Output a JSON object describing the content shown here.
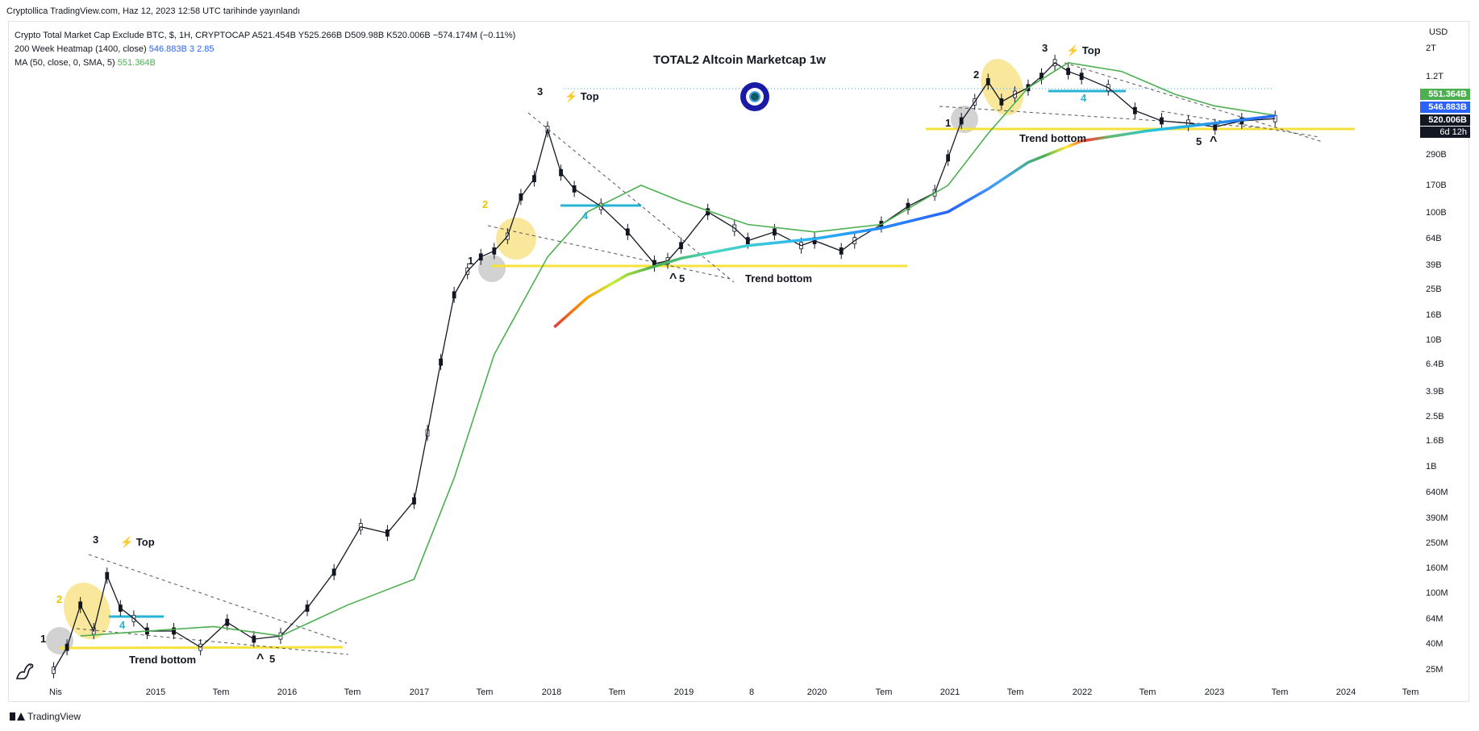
{
  "header": {
    "publish_line": "Cryptollica TradingView.com, Haz 12, 2023 12:58 UTC tarihinde yayınlandı"
  },
  "legend": {
    "main": "Crypto Total Market Cap Exclude BTC, $, 1H, CRYPTOCAP  A521.454B  Y525.266B  D509.98B  K520.006B  −574.174M (−0.11%)",
    "heatmap_label": "200 Week Heatmap (1400, close)",
    "heatmap_value": "546.883B",
    "heatmap_extra": "3  2.85",
    "ma_label": "MA (50, close, 0, SMA, 5)",
    "ma_value": "551.364B"
  },
  "title": "TOTAL2 Altcoin Marketcap 1w",
  "axis": {
    "currency": "USD",
    "y_ticks": [
      "2T",
      "1.2T",
      "290B",
      "170B",
      "100B",
      "64B",
      "39B",
      "25B",
      "16B",
      "10B",
      "6.4B",
      "3.9B",
      "2.5B",
      "1.6B",
      "1B",
      "640M",
      "390M",
      "250M",
      "160M",
      "100M",
      "64M",
      "40M",
      "25M"
    ],
    "x_ticks": [
      "Nis",
      "2015",
      "Tem",
      "2016",
      "Tem",
      "2017",
      "Tem",
      "2018",
      "Tem",
      "2019",
      "8",
      "2020",
      "Tem",
      "2021",
      "Tem",
      "2022",
      "Tem",
      "2023",
      "Tem",
      "2024",
      "Tem"
    ]
  },
  "badges": {
    "ma": "551.364B",
    "heatmap": "546.883B",
    "price": "520.006B",
    "countdown": "6d 12h"
  },
  "annotations": {
    "top": "Top",
    "trend_bottom": "Trend bottom",
    "wave1": "1",
    "wave2": "2",
    "wave3": "3",
    "wave4": "4",
    "wave5": "5"
  },
  "footer": {
    "brand": "TradingView"
  },
  "colors": {
    "ma": "#4caf50",
    "heatmap": "#2962ff",
    "trend_bottom_line": "#f5e23b",
    "wave4_line": "#26b3d6",
    "highlight": "#f7e07a",
    "badge_ma": "#4caf50",
    "badge_heatmap": "#2962ff",
    "badge_price": "#131722"
  },
  "chart_data": {
    "type": "line",
    "title": "TOTAL2 Altcoin Marketcap 1w",
    "yscale": "log",
    "ylim": [
      20000000,
      2400000000000
    ],
    "xlim": [
      2014.2,
      2024.5
    ],
    "series": [
      {
        "name": "Crypto Total Market Cap Exclude BTC",
        "x": [
          2014.3,
          2014.4,
          2014.5,
          2014.6,
          2014.7,
          2014.8,
          2014.9,
          2015.0,
          2015.2,
          2015.4,
          2015.6,
          2015.8,
          2016.0,
          2016.2,
          2016.4,
          2016.6,
          2016.8,
          2017.0,
          2017.1,
          2017.2,
          2017.3,
          2017.4,
          2017.5,
          2017.6,
          2017.7,
          2017.8,
          2017.9,
          2018.0,
          2018.1,
          2018.2,
          2018.4,
          2018.6,
          2018.8,
          2018.9,
          2019.0,
          2019.2,
          2019.4,
          2019.5,
          2019.7,
          2019.9,
          2020.0,
          2020.2,
          2020.3,
          2020.5,
          2020.7,
          2020.9,
          2021.0,
          2021.1,
          2021.2,
          2021.3,
          2021.4,
          2021.5,
          2021.6,
          2021.7,
          2021.8,
          2021.9,
          2022.0,
          2022.2,
          2022.4,
          2022.6,
          2022.8,
          2023.0,
          2023.2,
          2023.45
        ],
        "values": [
          30000000,
          45000000,
          95000000,
          60000000,
          160000000,
          90000000,
          75000000,
          60000000,
          60000000,
          45000000,
          70000000,
          52000000,
          55000000,
          90000000,
          170000000,
          380000000,
          340000000,
          600000000,
          2000000000,
          7000000000,
          23000000000,
          35000000000,
          45000000000,
          50000000000,
          65000000000,
          130000000000,
          180000000000,
          430000000000,
          200000000000,
          150000000000,
          110000000000,
          70000000000,
          40000000000,
          42000000000,
          55000000000,
          100000000000,
          75000000000,
          60000000000,
          70000000000,
          55000000000,
          60000000000,
          50000000000,
          60000000000,
          80000000000,
          110000000000,
          140000000000,
          260000000000,
          500000000000,
          700000000000,
          1000000000000,
          700000000000,
          800000000000,
          900000000000,
          1100000000000,
          1400000000000,
          1200000000000,
          1100000000000,
          900000000000,
          600000000000,
          500000000000,
          480000000000,
          450000000000,
          500000000000,
          520006000000
        ]
      },
      {
        "name": "MA (50, close, 0, SMA, 5)",
        "x": [
          2014.5,
          2015.0,
          2015.5,
          2016.0,
          2016.5,
          2017.0,
          2017.3,
          2017.6,
          2018.0,
          2018.3,
          2018.7,
          2019.0,
          2019.5,
          2020.0,
          2020.5,
          2021.0,
          2021.3,
          2021.6,
          2021.9,
          2022.3,
          2022.7,
          2023.0,
          2023.45
        ],
        "values": [
          55000000,
          60000000,
          65000000,
          55000000,
          95000000,
          150000000,
          900000000,
          8000000000,
          45000000000,
          100000000000,
          160000000000,
          120000000000,
          80000000000,
          70000000000,
          80000000000,
          160000000000,
          400000000000,
          900000000000,
          1400000000000,
          1200000000000,
          800000000000,
          650000000000,
          551364000000
        ]
      },
      {
        "name": "200 Week Heatmap (1400, close)",
        "x": [
          2018.05,
          2018.3,
          2018.6,
          2019.0,
          2019.5,
          2020.0,
          2020.5,
          2021.0,
          2021.3,
          2021.6,
          2022.0,
          2022.5,
          2023.0,
          2023.45
        ],
        "values": [
          13000000000,
          22000000000,
          33000000000,
          44000000000,
          55000000000,
          62000000000,
          75000000000,
          100000000000,
          150000000000,
          240000000000,
          350000000000,
          420000000000,
          480000000000,
          546883000000
        ]
      }
    ],
    "levels": {
      "trend_bottom_1": 38000000,
      "trend_bottom_2": 38000000000,
      "trend_bottom_3": 420000000000
    }
  }
}
